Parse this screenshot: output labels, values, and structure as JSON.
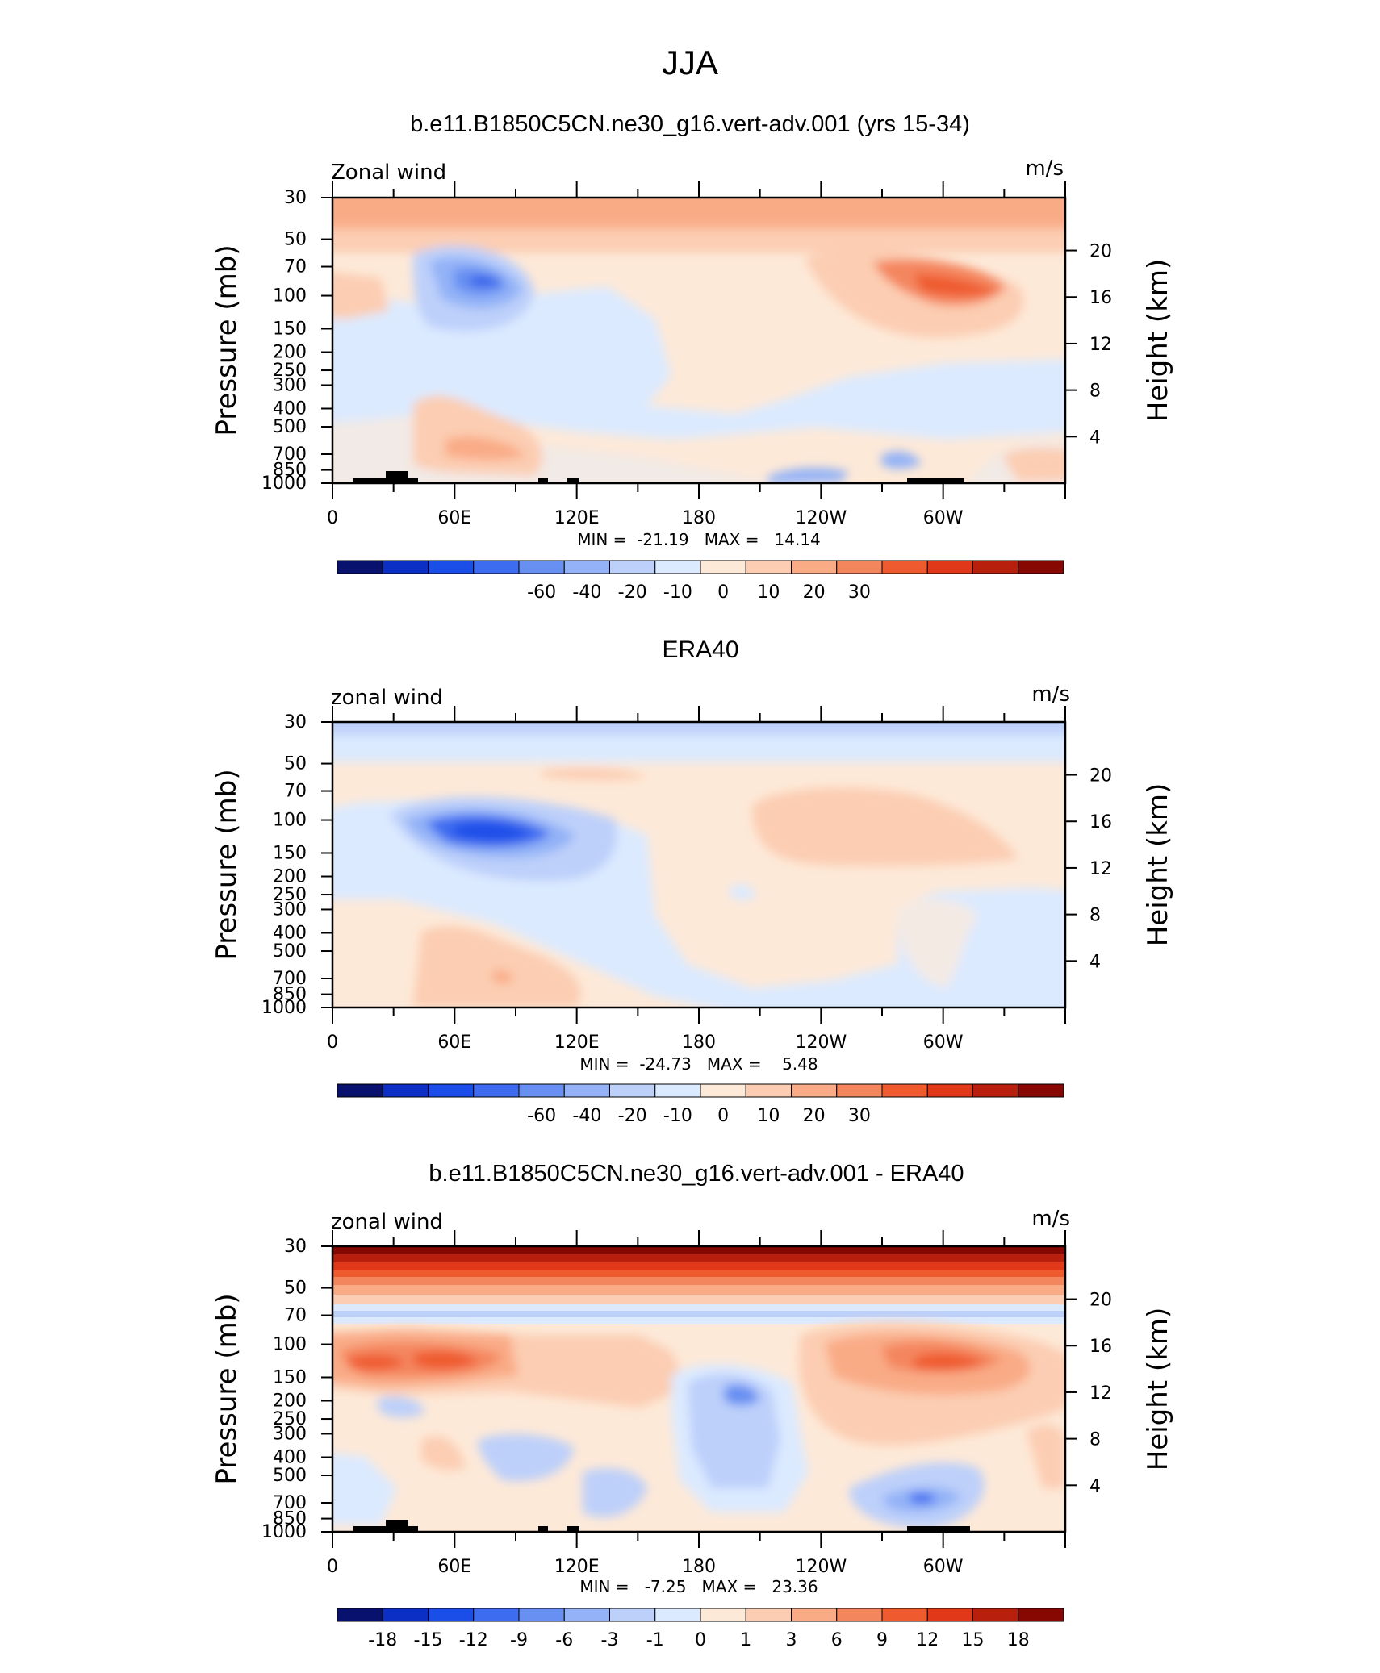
{
  "figure": {
    "title": "JJA"
  },
  "chart_data": [
    {
      "type": "heatmap",
      "title": "b.e11.B1850C5CN.ne30_g16.vert-adv.001 (yrs 15-34)",
      "left_label": "Zonal wind",
      "units": "m/s",
      "ylabel": "Pressure (mb)",
      "ylabel_right": "Height (km)",
      "x_ticks": [
        "0",
        "60E",
        "120E",
        "180",
        "120W",
        "60W"
      ],
      "y_ticks": [
        "30",
        "50",
        "70",
        "100",
        "150",
        "200",
        "250",
        "300",
        "400",
        "500",
        "700",
        "850",
        "1000"
      ],
      "height_ticks": [
        "20",
        "16",
        "12",
        "8",
        "4"
      ],
      "stats": {
        "min": "-21.19",
        "max": "14.14"
      },
      "min_max_label": "MIN =  -21.19   MAX =   14.14",
      "colorbar": {
        "labels": [
          "-60",
          "-40",
          "-20",
          "-10",
          "0",
          "10",
          "20",
          "30"
        ],
        "colors": [
          "#08116e",
          "#0b2fc4",
          "#1b4ee8",
          "#3d6cf0",
          "#6890f2",
          "#93b2f7",
          "#bdd0fa",
          "#dceaff",
          "#fde9d8",
          "#fccdb2",
          "#f9ab86",
          "#f4865e",
          "#ef5a2e",
          "#e2381a",
          "#b81f0d",
          "#870803"
        ]
      }
    },
    {
      "type": "heatmap",
      "title": "ERA40",
      "left_label": "zonal wind",
      "units": "m/s",
      "ylabel": "Pressure (mb)",
      "ylabel_right": "Height (km)",
      "x_ticks": [
        "0",
        "60E",
        "120E",
        "180",
        "120W",
        "60W"
      ],
      "y_ticks": [
        "30",
        "50",
        "70",
        "100",
        "150",
        "200",
        "250",
        "300",
        "400",
        "500",
        "700",
        "850",
        "1000"
      ],
      "height_ticks": [
        "20",
        "16",
        "12",
        "8",
        "4"
      ],
      "stats": {
        "min": "-24.73",
        "max": "5.48"
      },
      "min_max_label": "MIN =  -24.73   MAX =    5.48",
      "colorbar": {
        "labels": [
          "-60",
          "-40",
          "-20",
          "-10",
          "0",
          "10",
          "20",
          "30"
        ],
        "colors": [
          "#08116e",
          "#0b2fc4",
          "#1b4ee8",
          "#3d6cf0",
          "#6890f2",
          "#93b2f7",
          "#bdd0fa",
          "#dceaff",
          "#fde9d8",
          "#fccdb2",
          "#f9ab86",
          "#f4865e",
          "#ef5a2e",
          "#e2381a",
          "#b81f0d",
          "#870803"
        ]
      }
    },
    {
      "type": "heatmap",
      "title": "b.e11.B1850C5CN.ne30_g16.vert-adv.001 - ERA40",
      "left_label": "zonal wind",
      "units": "m/s",
      "ylabel": "Pressure (mb)",
      "ylabel_right": "Height (km)",
      "x_ticks": [
        "0",
        "60E",
        "120E",
        "180",
        "120W",
        "60W"
      ],
      "y_ticks": [
        "30",
        "50",
        "70",
        "100",
        "150",
        "200",
        "250",
        "300",
        "400",
        "500",
        "700",
        "850",
        "1000"
      ],
      "height_ticks": [
        "20",
        "16",
        "12",
        "8",
        "4"
      ],
      "stats": {
        "min": "-7.25",
        "max": "23.36"
      },
      "min_max_label": "MIN =   -7.25   MAX =   23.36",
      "colorbar": {
        "labels": [
          "-18",
          "-15",
          "-12",
          "-9",
          "-6",
          "-3",
          "-1",
          "0",
          "1",
          "3",
          "6",
          "9",
          "12",
          "15",
          "18"
        ],
        "colors": [
          "#08116e",
          "#0b2fc4",
          "#1b4ee8",
          "#3d6cf0",
          "#6890f2",
          "#93b2f7",
          "#bdd0fa",
          "#dceaff",
          "#fde9d8",
          "#fccdb2",
          "#f9ab86",
          "#f4865e",
          "#ef5a2e",
          "#e2381a",
          "#b81f0d",
          "#870803"
        ]
      }
    }
  ]
}
